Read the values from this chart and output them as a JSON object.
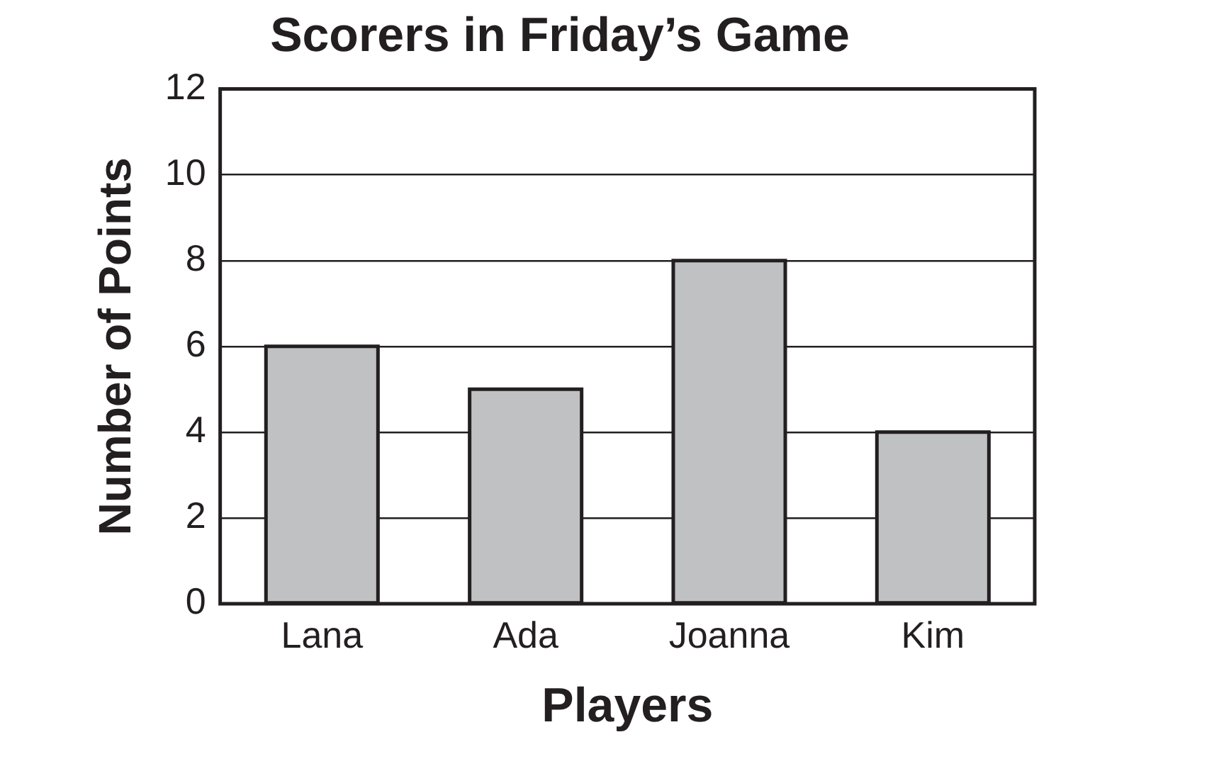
{
  "chart_data": {
    "type": "bar",
    "title": "Scorers in Friday’s Game",
    "xlabel": "Players",
    "ylabel": "Number of Points",
    "categories": [
      "Lana",
      "Ada",
      "Joanna",
      "Kim"
    ],
    "values": [
      6,
      5,
      8,
      4
    ],
    "color": "#c0c1c3",
    "ylim": [
      0,
      12
    ],
    "yticks": [
      0,
      2,
      4,
      6,
      8,
      10,
      12
    ],
    "grid": "y"
  }
}
